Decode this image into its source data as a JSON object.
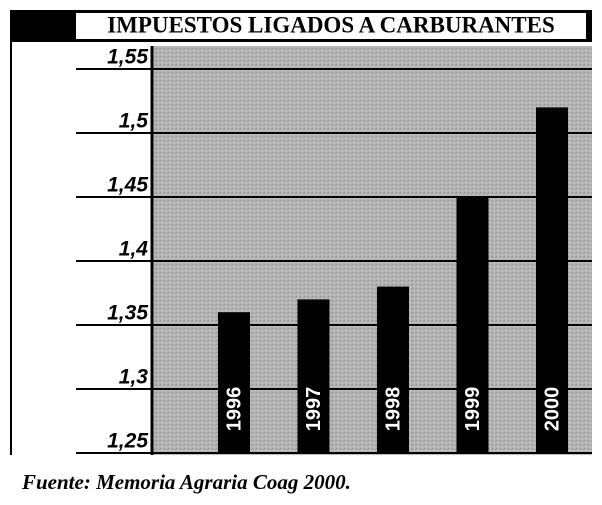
{
  "chart_data": {
    "type": "bar",
    "title": "IMPUESTOS LIGADOS A CARBURANTES",
    "categories": [
      "1996",
      "1997",
      "1998",
      "1999",
      "2000"
    ],
    "values": [
      1.36,
      1.37,
      1.38,
      1.45,
      1.52
    ],
    "color": "#000000",
    "ylim": [
      1.25,
      1.55
    ],
    "yticks": [
      {
        "value": 1.25,
        "label": "1,25"
      },
      {
        "value": 1.3,
        "label": "1,3"
      },
      {
        "value": 1.35,
        "label": "1,35"
      },
      {
        "value": 1.4,
        "label": "1,4"
      },
      {
        "value": 1.45,
        "label": "1,45"
      },
      {
        "value": 1.5,
        "label": "1,5"
      },
      {
        "value": 1.55,
        "label": "1,55"
      }
    ],
    "grid": true,
    "source": "Fuente: Memoria Agraria Coag 2000."
  }
}
